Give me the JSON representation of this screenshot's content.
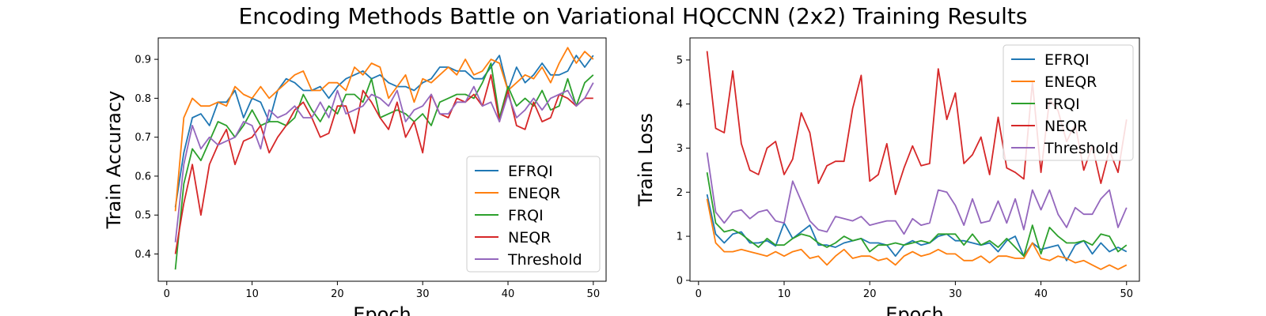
{
  "figure": {
    "title": "Encoding Methods Battle on Variational HQCCNN (2x2) Training Results"
  },
  "chart_data": [
    {
      "type": "line",
      "title": "",
      "xlabel": "Epoch",
      "ylabel": "Train Accuracy",
      "xlim": [
        -1,
        51.5
      ],
      "ylim": [
        0.33,
        0.955
      ],
      "xticks": [
        0,
        10,
        20,
        30,
        40,
        50
      ],
      "yticks": [
        0.4,
        0.5,
        0.6,
        0.7,
        0.8,
        0.9
      ],
      "ytick_labels": [
        "0.4",
        "0.5",
        "0.6",
        "0.7",
        "0.8",
        "0.9"
      ],
      "grid": false,
      "legend": "lower-right",
      "x": [
        1,
        2,
        3,
        4,
        5,
        6,
        7,
        8,
        9,
        10,
        11,
        12,
        13,
        14,
        15,
        16,
        17,
        18,
        19,
        20,
        21,
        22,
        23,
        24,
        25,
        26,
        27,
        28,
        29,
        30,
        31,
        32,
        33,
        34,
        35,
        36,
        37,
        38,
        39,
        40,
        41,
        42,
        43,
        44,
        45,
        46,
        47,
        48,
        49,
        50
      ],
      "series": [
        {
          "name": "EFRQI",
          "color": "#1f77b4",
          "values": [
            0.52,
            0.66,
            0.75,
            0.76,
            0.73,
            0.79,
            0.79,
            0.82,
            0.75,
            0.8,
            0.79,
            0.74,
            0.82,
            0.85,
            0.84,
            0.82,
            0.82,
            0.83,
            0.8,
            0.83,
            0.85,
            0.86,
            0.87,
            0.85,
            0.86,
            0.84,
            0.83,
            0.83,
            0.82,
            0.84,
            0.85,
            0.88,
            0.88,
            0.87,
            0.87,
            0.85,
            0.85,
            0.88,
            0.91,
            0.82,
            0.88,
            0.84,
            0.86,
            0.89,
            0.86,
            0.86,
            0.87,
            0.91,
            0.88,
            0.91
          ]
        },
        {
          "name": "ENEQR",
          "color": "#ff7f0e",
          "values": [
            0.51,
            0.75,
            0.8,
            0.78,
            0.78,
            0.79,
            0.78,
            0.83,
            0.81,
            0.8,
            0.83,
            0.8,
            0.82,
            0.84,
            0.86,
            0.87,
            0.82,
            0.82,
            0.84,
            0.84,
            0.82,
            0.88,
            0.86,
            0.89,
            0.88,
            0.8,
            0.83,
            0.86,
            0.79,
            0.85,
            0.84,
            0.86,
            0.88,
            0.86,
            0.9,
            0.86,
            0.87,
            0.9,
            0.89,
            0.82,
            0.84,
            0.86,
            0.85,
            0.88,
            0.84,
            0.89,
            0.93,
            0.89,
            0.92,
            0.9
          ]
        },
        {
          "name": "FRQI",
          "color": "#2ca02c",
          "values": [
            0.36,
            0.58,
            0.67,
            0.64,
            0.69,
            0.74,
            0.73,
            0.7,
            0.73,
            0.77,
            0.73,
            0.74,
            0.74,
            0.73,
            0.75,
            0.81,
            0.77,
            0.74,
            0.78,
            0.76,
            0.81,
            0.81,
            0.79,
            0.85,
            0.75,
            0.76,
            0.77,
            0.76,
            0.74,
            0.76,
            0.73,
            0.79,
            0.8,
            0.81,
            0.81,
            0.8,
            0.84,
            0.89,
            0.75,
            0.83,
            0.78,
            0.8,
            0.78,
            0.82,
            0.77,
            0.78,
            0.85,
            0.78,
            0.84,
            0.86
          ]
        },
        {
          "name": "NEQR",
          "color": "#d62728",
          "values": [
            0.4,
            0.53,
            0.63,
            0.5,
            0.63,
            0.68,
            0.72,
            0.63,
            0.69,
            0.7,
            0.73,
            0.66,
            0.7,
            0.73,
            0.77,
            0.79,
            0.75,
            0.7,
            0.71,
            0.78,
            0.78,
            0.71,
            0.82,
            0.79,
            0.75,
            0.72,
            0.79,
            0.7,
            0.74,
            0.66,
            0.81,
            0.76,
            0.75,
            0.8,
            0.79,
            0.81,
            0.78,
            0.86,
            0.74,
            0.82,
            0.73,
            0.72,
            0.79,
            0.74,
            0.75,
            0.81,
            0.8,
            0.78,
            0.8,
            0.8
          ]
        },
        {
          "name": "Threshold",
          "color": "#9467bd",
          "values": [
            0.43,
            0.63,
            0.73,
            0.67,
            0.7,
            0.68,
            0.69,
            0.7,
            0.74,
            0.73,
            0.67,
            0.77,
            0.75,
            0.76,
            0.78,
            0.75,
            0.75,
            0.79,
            0.75,
            0.82,
            0.76,
            0.77,
            0.78,
            0.81,
            0.8,
            0.78,
            0.82,
            0.74,
            0.77,
            0.78,
            0.81,
            0.76,
            0.76,
            0.79,
            0.79,
            0.83,
            0.78,
            0.79,
            0.74,
            0.81,
            0.75,
            0.77,
            0.8,
            0.77,
            0.8,
            0.81,
            0.82,
            0.78,
            0.8,
            0.84
          ]
        }
      ]
    },
    {
      "type": "line",
      "title": "",
      "xlabel": "Epoch",
      "ylabel": "Train Loss",
      "xlim": [
        -1,
        51.5
      ],
      "ylim": [
        -0.02,
        5.5
      ],
      "xticks": [
        0,
        10,
        20,
        30,
        40,
        50
      ],
      "yticks": [
        0,
        1,
        2,
        3,
        4,
        5
      ],
      "ytick_labels": [
        "0",
        "1",
        "2",
        "3",
        "4",
        "5"
      ],
      "grid": false,
      "legend": "upper-right",
      "x": [
        1,
        2,
        3,
        4,
        5,
        6,
        7,
        8,
        9,
        10,
        11,
        12,
        13,
        14,
        15,
        16,
        17,
        18,
        19,
        20,
        21,
        22,
        23,
        24,
        25,
        26,
        27,
        28,
        29,
        30,
        31,
        32,
        33,
        34,
        35,
        36,
        37,
        38,
        39,
        40,
        41,
        42,
        43,
        44,
        45,
        46,
        47,
        48,
        49,
        50
      ],
      "series": [
        {
          "name": "EFRQI",
          "color": "#1f77b4",
          "values": [
            1.95,
            1.05,
            0.85,
            1.05,
            1.1,
            0.85,
            0.85,
            0.9,
            0.78,
            1.3,
            0.95,
            1.1,
            1.25,
            0.8,
            0.8,
            0.75,
            0.85,
            0.9,
            0.95,
            0.85,
            0.85,
            0.8,
            0.55,
            0.8,
            0.9,
            0.8,
            0.85,
            1.0,
            1.05,
            0.9,
            0.9,
            0.85,
            0.8,
            0.85,
            0.65,
            0.9,
            1.0,
            0.55,
            0.85,
            0.7,
            0.75,
            0.8,
            0.45,
            0.8,
            0.9,
            0.6,
            0.85,
            0.65,
            0.75,
            0.65
          ]
        },
        {
          "name": "ENEQR",
          "color": "#ff7f0e",
          "values": [
            1.85,
            0.85,
            0.65,
            0.65,
            0.7,
            0.65,
            0.6,
            0.55,
            0.65,
            0.55,
            0.65,
            0.7,
            0.5,
            0.55,
            0.35,
            0.55,
            0.7,
            0.5,
            0.55,
            0.55,
            0.45,
            0.5,
            0.35,
            0.55,
            0.65,
            0.55,
            0.6,
            0.7,
            0.6,
            0.6,
            0.45,
            0.45,
            0.55,
            0.4,
            0.55,
            0.55,
            0.5,
            0.5,
            0.85,
            0.5,
            0.45,
            0.55,
            0.5,
            0.4,
            0.45,
            0.35,
            0.25,
            0.35,
            0.25,
            0.35
          ]
        },
        {
          "name": "FRQI",
          "color": "#2ca02c",
          "values": [
            2.45,
            1.3,
            1.1,
            1.15,
            1.05,
            0.9,
            0.75,
            0.95,
            0.8,
            0.8,
            0.95,
            1.05,
            1.0,
            0.85,
            0.75,
            0.85,
            1.0,
            0.9,
            0.95,
            0.65,
            0.8,
            0.8,
            0.85,
            0.8,
            0.85,
            0.9,
            0.85,
            1.05,
            1.05,
            1.05,
            0.8,
            1.05,
            0.8,
            0.9,
            0.75,
            0.95,
            0.75,
            0.55,
            1.25,
            0.6,
            1.2,
            1.0,
            0.85,
            0.85,
            0.9,
            0.8,
            1.05,
            1.0,
            0.65,
            0.8
          ]
        },
        {
          "name": "NEQR",
          "color": "#d62728",
          "values": [
            5.2,
            3.45,
            3.35,
            4.75,
            3.1,
            2.5,
            2.4,
            3.0,
            3.15,
            2.4,
            2.75,
            3.8,
            3.35,
            2.2,
            2.6,
            2.7,
            2.7,
            3.9,
            4.65,
            2.25,
            2.4,
            3.1,
            1.95,
            2.55,
            3.05,
            2.6,
            2.65,
            4.8,
            3.65,
            4.25,
            2.65,
            2.85,
            3.25,
            2.4,
            3.7,
            2.55,
            2.45,
            2.3,
            4.5,
            2.45,
            4.1,
            3.85,
            3.15,
            3.55,
            2.5,
            3.05,
            2.2,
            2.95,
            2.45,
            3.65
          ]
        },
        {
          "name": "Threshold",
          "color": "#9467bd",
          "values": [
            2.9,
            1.55,
            1.3,
            1.55,
            1.6,
            1.4,
            1.55,
            1.6,
            1.35,
            1.3,
            2.25,
            1.8,
            1.35,
            1.15,
            1.1,
            1.45,
            1.4,
            1.35,
            1.45,
            1.25,
            1.3,
            1.35,
            1.35,
            1.05,
            1.4,
            1.25,
            1.3,
            2.05,
            2.0,
            1.7,
            1.25,
            1.85,
            1.3,
            1.35,
            1.8,
            1.3,
            1.85,
            1.15,
            2.05,
            1.6,
            2.05,
            1.5,
            1.2,
            1.65,
            1.5,
            1.5,
            1.85,
            2.05,
            1.2,
            1.65
          ]
        }
      ]
    }
  ]
}
